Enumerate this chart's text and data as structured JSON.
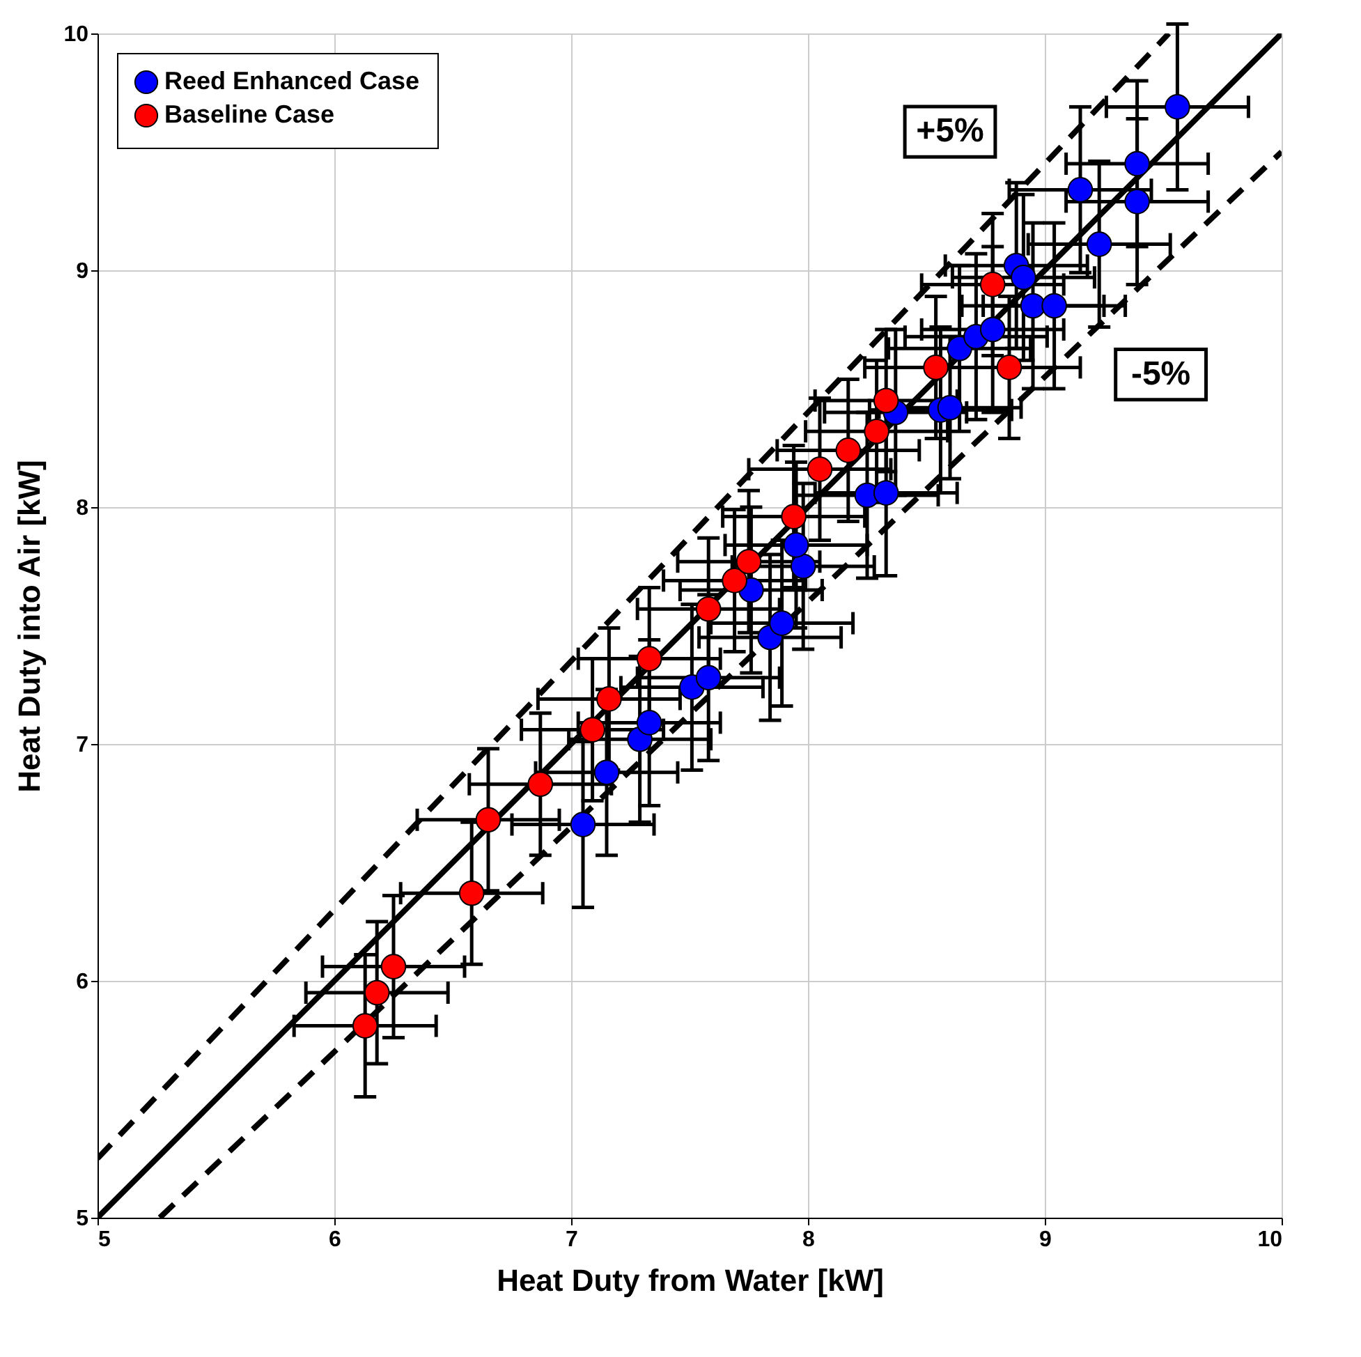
{
  "chart_data": {
    "type": "scatter",
    "xlabel": "Heat Duty from Water [kW]",
    "ylabel": "Heat Duty into Air [kW]",
    "xlim": [
      5,
      10
    ],
    "ylim": [
      5,
      10
    ],
    "xticks": [
      5,
      6,
      7,
      8,
      9,
      10
    ],
    "yticks": [
      5,
      6,
      7,
      8,
      9,
      10
    ],
    "grid": true,
    "legend": "top left",
    "marker": "circle",
    "series": [
      {
        "name": "Reed Enhanced Case",
        "color": "#0000ff",
        "x": [
          7.05,
          7.15,
          7.29,
          7.33,
          7.51,
          7.58,
          7.84,
          7.89,
          7.76,
          7.98,
          7.95,
          8.25,
          8.33,
          8.37,
          8.56,
          8.6,
          8.64,
          8.71,
          8.78,
          8.88,
          8.91,
          8.95,
          9.04,
          9.23,
          9.15,
          9.39,
          9.39,
          9.56
        ],
        "values": [
          6.66,
          6.88,
          7.02,
          7.09,
          7.24,
          7.28,
          7.45,
          7.51,
          7.65,
          7.75,
          7.84,
          8.05,
          8.06,
          8.4,
          8.41,
          8.42,
          8.67,
          8.72,
          8.75,
          9.02,
          8.97,
          8.85,
          8.85,
          9.11,
          9.34,
          9.29,
          9.45,
          9.69
        ],
        "errors": [
          0.35,
          0.35,
          0.35,
          0.35,
          0.35,
          0.35,
          0.35,
          0.35,
          0.35,
          0.35,
          0.35,
          0.35,
          0.35,
          0.35,
          0.35,
          0.3,
          0.35,
          0.35,
          0.35,
          0.35,
          0.35,
          0.35,
          0.35,
          0.35,
          0.35,
          0.35,
          0.35,
          0.35
        ],
        "xerrors": [
          0.3,
          0.3,
          0.3,
          0.3,
          0.3,
          0.3,
          0.3,
          0.3,
          0.3,
          0.3,
          0.3,
          0.3,
          0.3,
          0.3,
          0.3,
          0.3,
          0.3,
          0.3,
          0.3,
          0.3,
          0.3,
          0.3,
          0.3,
          0.3,
          0.3,
          0.3,
          0.3,
          0.3
        ]
      },
      {
        "name": "Baseline Case",
        "color": "#ff0000",
        "x": [
          6.13,
          6.18,
          6.25,
          6.58,
          6.65,
          6.87,
          7.09,
          7.16,
          7.33,
          7.58,
          7.69,
          7.75,
          7.94,
          8.05,
          8.17,
          8.29,
          8.33,
          8.54,
          8.85,
          8.78
        ],
        "values": [
          5.81,
          5.95,
          6.06,
          6.37,
          6.68,
          6.83,
          7.06,
          7.19,
          7.36,
          7.57,
          7.69,
          7.77,
          7.96,
          8.16,
          8.24,
          8.32,
          8.45,
          8.59,
          8.59,
          8.94
        ],
        "errors": [
          0.3,
          0.3,
          0.3,
          0.3,
          0.3,
          0.3,
          0.3,
          0.3,
          0.3,
          0.3,
          0.3,
          0.3,
          0.3,
          0.3,
          0.3,
          0.3,
          0.3,
          0.3,
          0.3,
          0.3
        ],
        "xerrors": [
          0.3,
          0.3,
          0.3,
          0.3,
          0.3,
          0.3,
          0.3,
          0.3,
          0.3,
          0.3,
          0.3,
          0.3,
          0.3,
          0.3,
          0.3,
          0.3,
          0.3,
          0.3,
          0.3,
          0.3
        ]
      },
      {
        "type": "line",
        "color": "#000000",
        "line_style": "solid",
        "marker": "none",
        "x": [
          5,
          10
        ],
        "values": [
          5,
          10
        ]
      },
      {
        "type": "line",
        "color": "#000000",
        "line_style": "dashed",
        "marker": "none",
        "x": [
          5,
          9.524
        ],
        "values": [
          5.25,
          10
        ]
      },
      {
        "type": "line",
        "color": "#000000",
        "line_style": "dashed",
        "marker": "none",
        "x": [
          5.263,
          10
        ],
        "values": [
          5,
          9.5
        ]
      }
    ],
    "annotations": [
      "+5%",
      "-5%"
    ]
  }
}
